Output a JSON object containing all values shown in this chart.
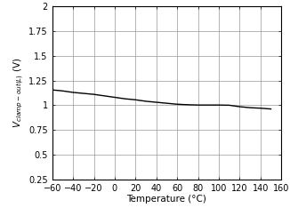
{
  "title": "",
  "xlabel": "Temperature (°C)",
  "ylabel": "V_clamp-out(L) (V)",
  "xlim": [
    -60,
    160
  ],
  "ylim": [
    0.25,
    2.0
  ],
  "xticks": [
    -60,
    -40,
    -20,
    0,
    20,
    40,
    60,
    80,
    100,
    120,
    140,
    160
  ],
  "yticks": [
    0.25,
    0.5,
    0.75,
    1.0,
    1.25,
    1.5,
    1.75,
    2.0
  ],
  "x_data": [
    -60,
    -50,
    -40,
    -30,
    -20,
    -10,
    0,
    10,
    20,
    30,
    40,
    50,
    60,
    70,
    80,
    90,
    100,
    110,
    120,
    130,
    140,
    150
  ],
  "y_data": [
    1.155,
    1.145,
    1.13,
    1.12,
    1.11,
    1.095,
    1.08,
    1.065,
    1.055,
    1.04,
    1.03,
    1.02,
    1.01,
    1.005,
    1.002,
    1.002,
    1.002,
    1.0,
    0.985,
    0.975,
    0.97,
    0.962
  ],
  "line_color": "#000000",
  "line_width": 1.0,
  "grid_color": "#999999",
  "background_color": "#ffffff",
  "tick_fontsize": 7,
  "label_fontsize": 7.5
}
